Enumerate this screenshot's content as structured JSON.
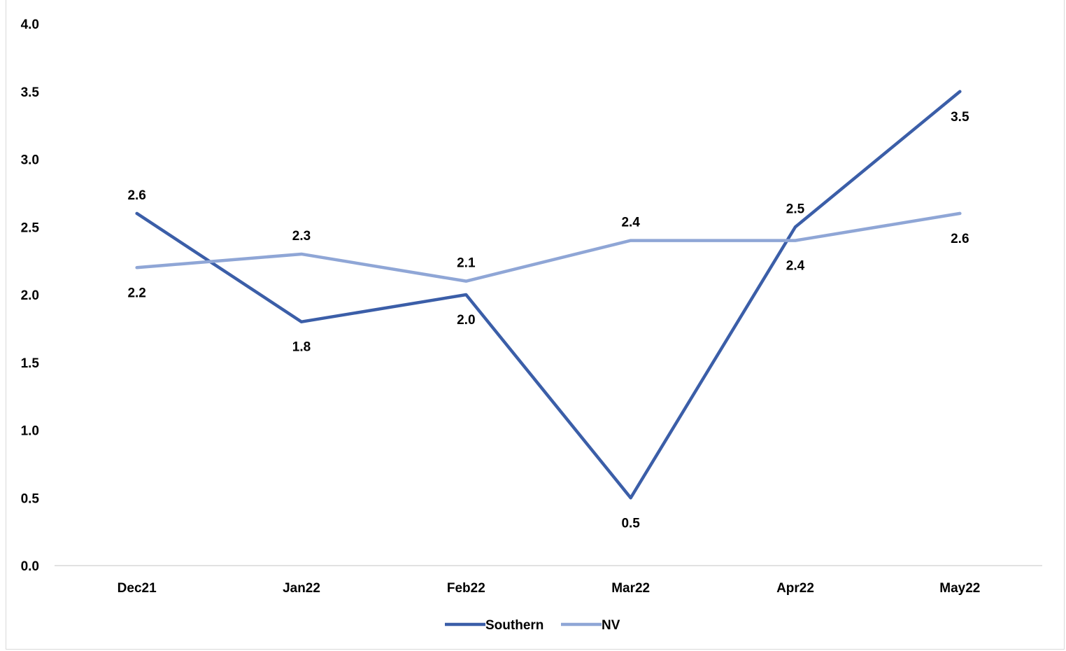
{
  "chart_data": {
    "type": "line",
    "title": "",
    "xlabel": "",
    "ylabel": "",
    "categories": [
      "Dec21",
      "Jan22",
      "Feb22",
      "Mar22",
      "Apr22",
      "May22"
    ],
    "ylim": [
      0,
      4
    ],
    "yticks": [
      "0.0",
      "0.5",
      "1.0",
      "1.5",
      "2.0",
      "2.5",
      "3.0",
      "3.5",
      "4.0"
    ],
    "grid": false,
    "legend_position": "bottom",
    "series": [
      {
        "name": "Southern",
        "color": "#3b5ea8",
        "values": [
          2.6,
          1.8,
          2.0,
          0.5,
          2.5,
          3.5
        ],
        "labels": [
          "2.6",
          "1.8",
          "2.0",
          "0.5",
          "2.5",
          "3.5"
        ]
      },
      {
        "name": "NV",
        "color": "#8fa6d6",
        "values": [
          2.2,
          2.3,
          2.1,
          2.4,
          2.4,
          2.6
        ],
        "labels": [
          "2.2",
          "2.3",
          "2.1",
          "2.4",
          "2.4",
          "2.6"
        ]
      }
    ]
  }
}
